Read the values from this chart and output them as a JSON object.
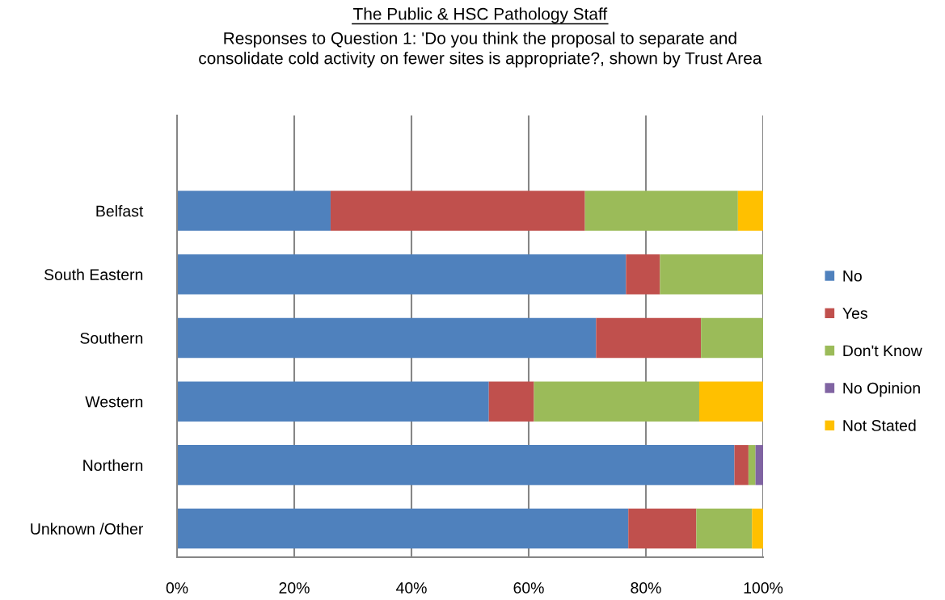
{
  "chart_data": {
    "type": "bar",
    "orientation": "horizontal",
    "stacked": true,
    "title": "The Public & HSC Pathology Staff",
    "subtitle": "Responses to Question 1: 'Do you think the proposal to separate and\nconsolidate cold activity on fewer sites is appropriate?, shown by Trust Area",
    "categories": [
      "Belfast",
      "South Eastern",
      "Southern",
      "Western",
      "Northern",
      "Unknown /Other"
    ],
    "series": [
      {
        "name": "No",
        "color": "#4f81bd",
        "values": [
          26.2,
          76.6,
          71.5,
          53.2,
          95.1,
          77.0
        ]
      },
      {
        "name": "Yes",
        "color": "#c0504d",
        "values": [
          43.4,
          5.8,
          17.9,
          7.7,
          2.4,
          11.6
        ]
      },
      {
        "name": "Don't Know",
        "color": "#9bbb59",
        "values": [
          26.1,
          17.6,
          10.6,
          28.2,
          1.2,
          9.5
        ]
      },
      {
        "name": "No Opinion",
        "color": "#8064a2",
        "values": [
          null,
          null,
          null,
          null,
          1.3,
          null
        ]
      },
      {
        "name": "Not Stated",
        "color": "#ffc000",
        "values": [
          4.3,
          null,
          null,
          10.9,
          null,
          1.9
        ]
      }
    ],
    "xlim": [
      0,
      100
    ],
    "xticks": [
      {
        "value": 0,
        "label": "0%"
      },
      {
        "value": 20,
        "label": "20%"
      },
      {
        "value": 40,
        "label": "40%"
      },
      {
        "value": 60,
        "label": "60%"
      },
      {
        "value": 80,
        "label": "80%"
      },
      {
        "value": 100,
        "label": "100%"
      }
    ],
    "grid": "x",
    "legend": "right"
  }
}
